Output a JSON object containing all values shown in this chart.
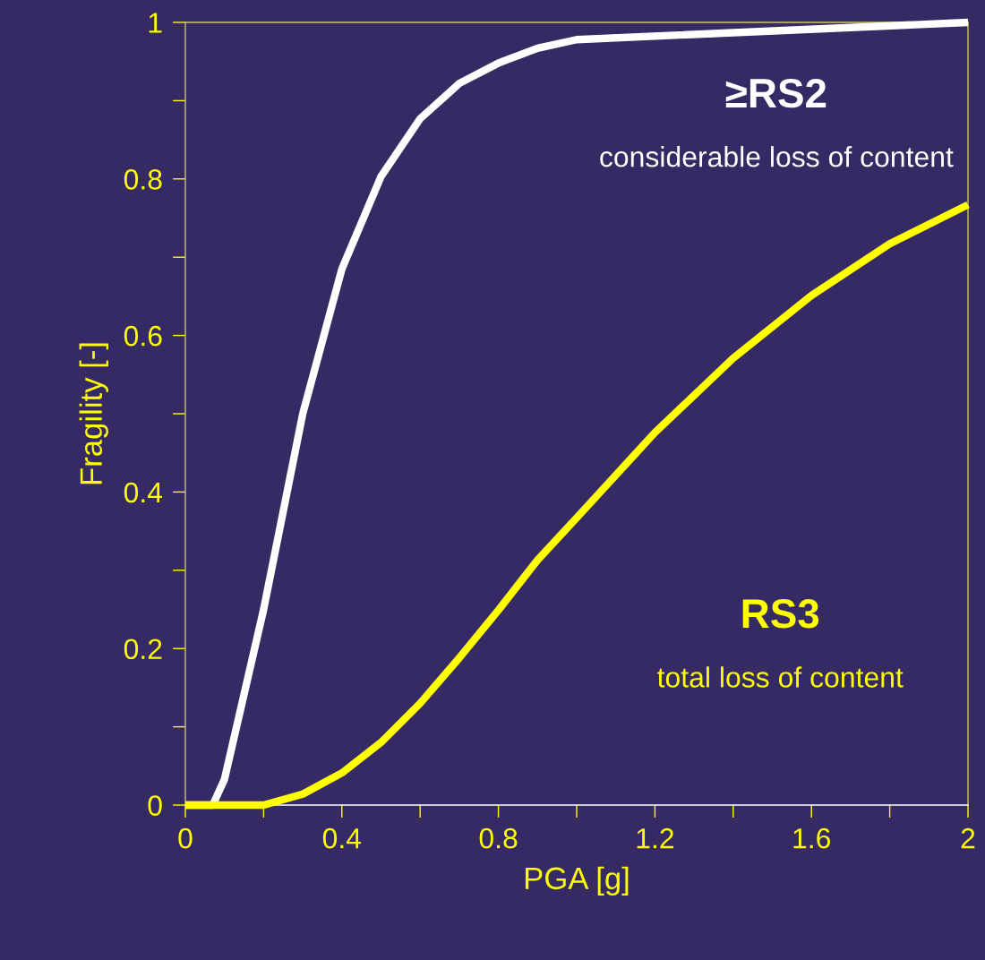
{
  "chart_data": {
    "type": "line",
    "xlabel": "PGA [g]",
    "ylabel": "Fragility [-]",
    "xlim": [
      0,
      2
    ],
    "ylim": [
      0,
      1
    ],
    "xticks": [
      0,
      {
        "value": 0.2,
        "label": null
      },
      0.4,
      {
        "value": 0.6,
        "label": null
      },
      0.8,
      {
        "value": 1.0,
        "label": null
      },
      1.2,
      {
        "value": 1.4,
        "label": null
      },
      1.6,
      {
        "value": 1.8,
        "label": null
      },
      2
    ],
    "yticks": [
      0,
      {
        "value": 0.1,
        "label": null
      },
      0.2,
      {
        "value": 0.3,
        "label": null
      },
      0.4,
      {
        "value": 0.5,
        "label": null
      },
      0.6,
      {
        "value": 0.7,
        "label": null
      },
      0.8,
      {
        "value": 0.9,
        "label": null
      },
      1
    ],
    "grid": false,
    "legend": false,
    "marker": "none",
    "line_style": "solid",
    "series": [
      {
        "name": "≥RS2",
        "color": "#ffffff",
        "x": [
          0,
          0.07,
          0.08,
          0.1,
          0.2,
          0.3,
          0.4,
          0.5,
          0.6,
          0.7,
          0.8,
          0.9,
          1.0,
          2.0
        ],
        "values": [
          0,
          0,
          0.011,
          0.033,
          0.25,
          0.5,
          0.685,
          0.803,
          0.877,
          0.922,
          0.948,
          0.967,
          0.978,
          1.0
        ]
      },
      {
        "name": "RS3",
        "color": "#ffff00",
        "x": [
          0,
          0.2,
          0.3,
          0.4,
          0.5,
          0.6,
          0.7,
          0.8,
          0.9,
          1.0,
          1.2,
          1.4,
          1.6,
          1.8,
          2.0
        ],
        "values": [
          0,
          0,
          0.014,
          0.041,
          0.08,
          0.13,
          0.188,
          0.249,
          0.313,
          0.367,
          0.476,
          0.571,
          0.651,
          0.717,
          0.767
        ]
      }
    ],
    "annotations": [
      "considerable loss of content",
      "total loss of content"
    ]
  }
}
